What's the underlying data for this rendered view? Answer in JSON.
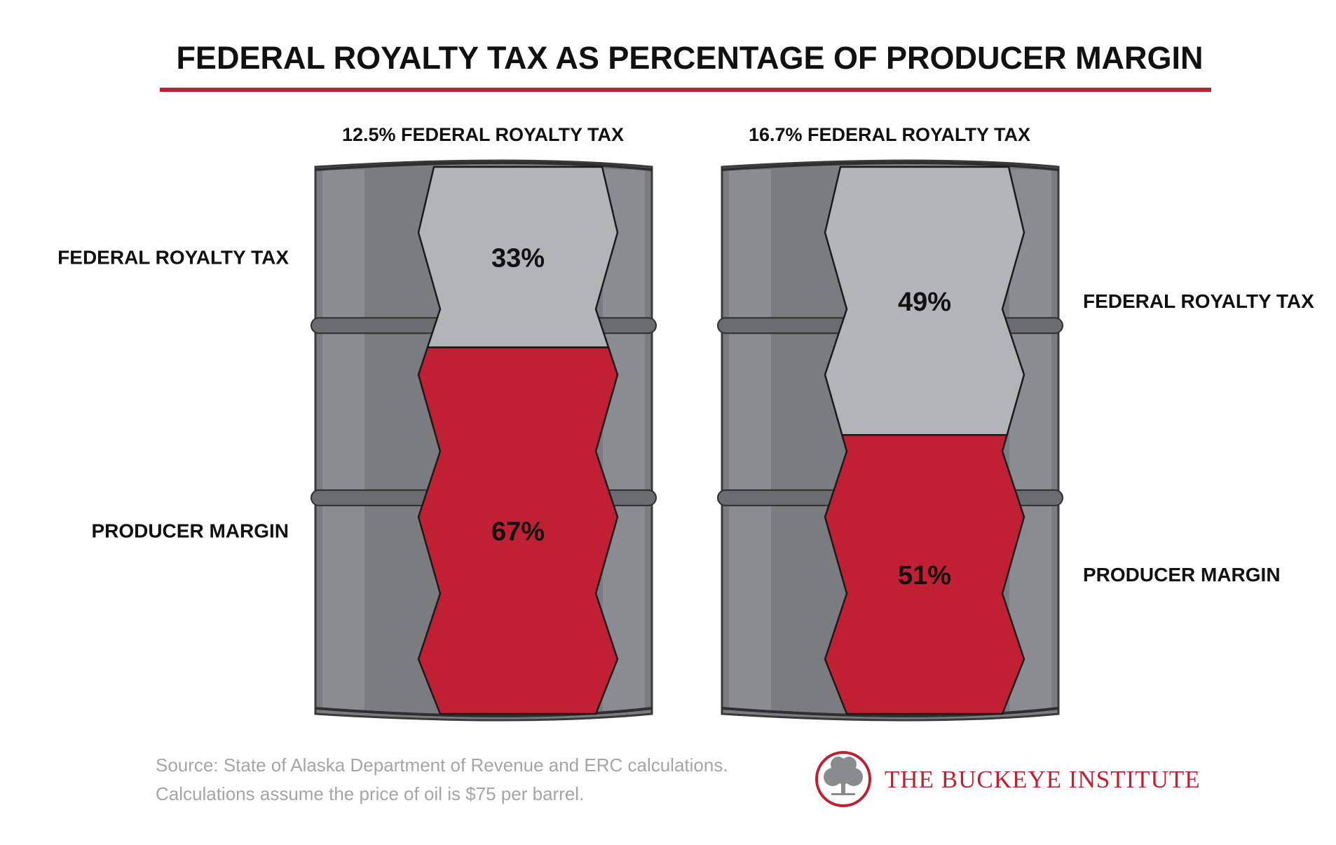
{
  "title": "FEDERAL ROYALTY TAX AS PERCENTAGE OF PRODUCER MARGIN",
  "colors": {
    "accent_red": "#c11f33",
    "tax_gray": "#b3b4b7",
    "barrel_dark": "#7b7c80",
    "barrel_mid": "#8d8e92",
    "title_rule": "#c11f33",
    "source_text": "#a3a5a8"
  },
  "chart_data": [
    {
      "type": "bar",
      "subtitle": "12.5% FEDERAL ROYALTY TAX",
      "categories": [
        "FEDERAL ROYALTY TAX",
        "PRODUCER MARGIN"
      ],
      "values": [
        33,
        67
      ],
      "value_labels": [
        "33%",
        "67%"
      ],
      "colors": [
        "#b3b4b7",
        "#c11f33"
      ],
      "label_side": "left"
    },
    {
      "type": "bar",
      "subtitle": "16.7% FEDERAL ROYALTY TAX",
      "categories": [
        "FEDERAL ROYALTY TAX",
        "PRODUCER MARGIN"
      ],
      "values": [
        49,
        51
      ],
      "value_labels": [
        "49%",
        "51%"
      ],
      "colors": [
        "#b3b4b7",
        "#c11f33"
      ],
      "label_side": "right"
    }
  ],
  "source": {
    "line1": "Source: State of Alaska Department of Revenue and ERC calculations.",
    "line2": "Calculations assume the price of oil is $75 per barrel."
  },
  "brand": {
    "name": "THE BUCKEYE INSTITUTE",
    "logo_icon": "tree-icon"
  }
}
